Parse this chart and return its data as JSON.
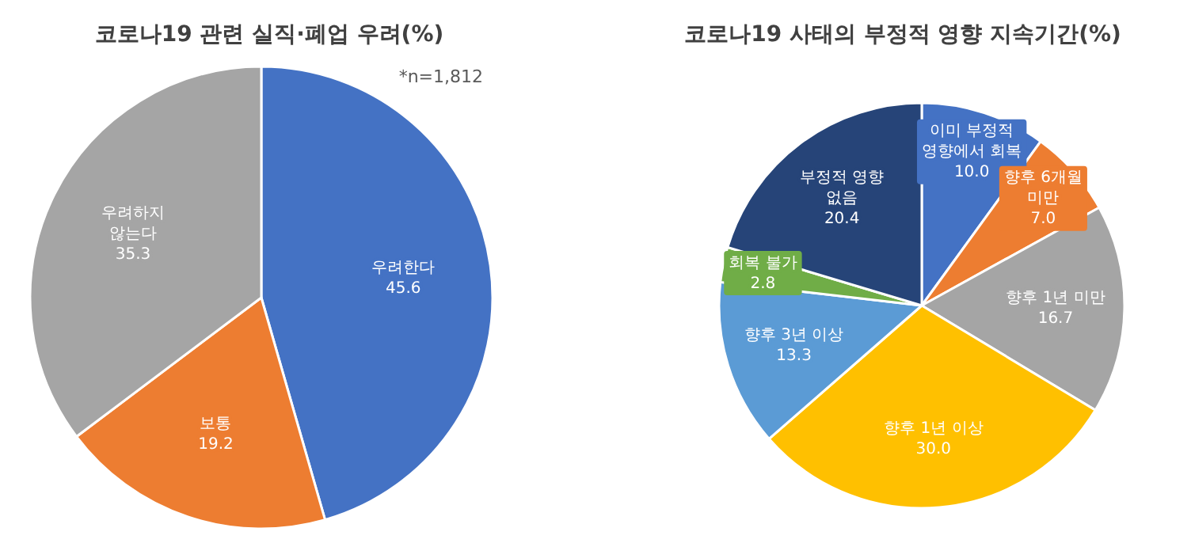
{
  "chart_data": [
    {
      "type": "pie",
      "title": "코로나19 관련 실직·폐업 우려(%)",
      "annotations": [
        "*n=1,812"
      ],
      "categories": [
        "우려한다",
        "보통",
        "우려하지\n않는다"
      ],
      "values": [
        45.6,
        19.2,
        35.3
      ],
      "value_labels": [
        "45.6",
        "19.2",
        "35.3"
      ],
      "colors": [
        "#4472c4",
        "#ed7d31",
        "#a5a5a5"
      ]
    },
    {
      "type": "pie",
      "title": "코로나19 사태의 부정적 영향 지속기간(%)",
      "categories": [
        "이미 부정적\n영향에서 회복",
        "향후 6개월\n미만",
        "향후 1년 미만",
        "향후 1년 이상",
        "향후 3년 이상",
        "회복 불가",
        "부정적 영향\n없음"
      ],
      "values": [
        10.0,
        7.0,
        16.7,
        30.0,
        13.3,
        2.8,
        20.4
      ],
      "value_labels": [
        "10.0",
        "7.0",
        "16.7",
        "30.0",
        "13.3",
        "2.8",
        "20.4"
      ],
      "colors": [
        "#4472c4",
        "#ed7d31",
        "#a5a5a5",
        "#ffc000",
        "#5b9bd5",
        "#70ad47",
        "#264478"
      ]
    }
  ]
}
